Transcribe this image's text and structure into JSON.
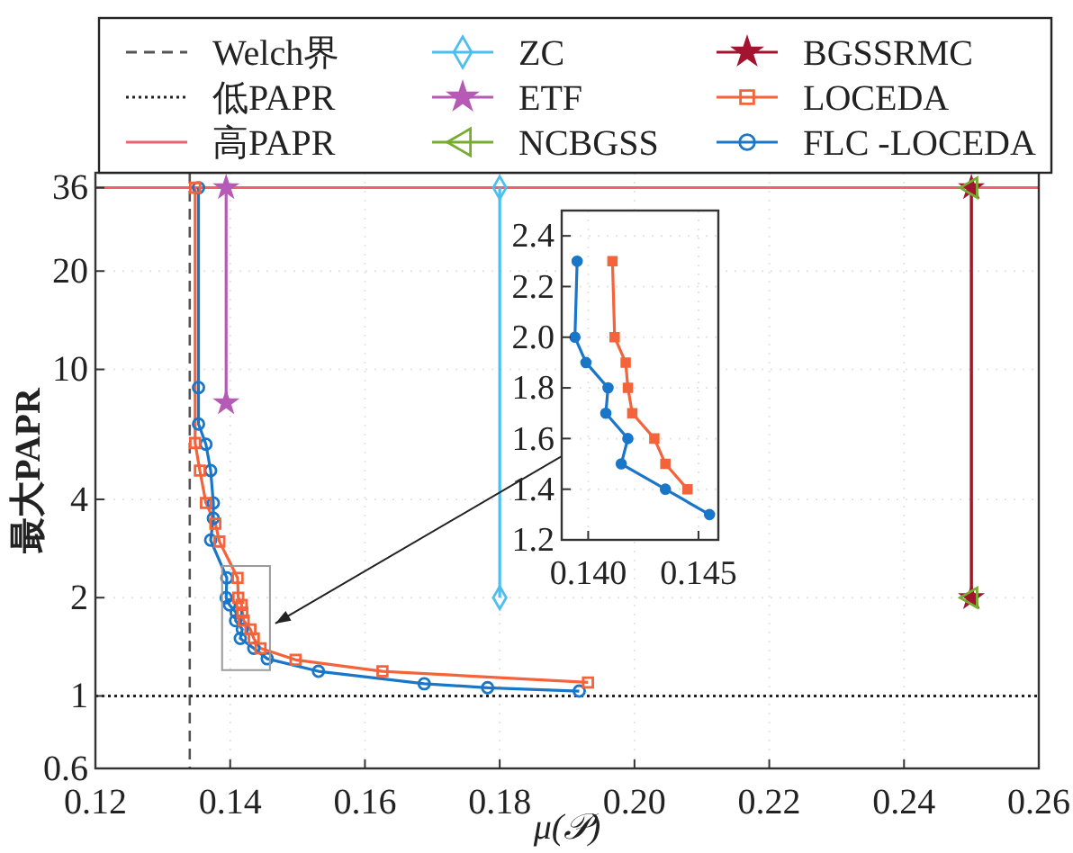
{
  "chart_data": [
    {
      "type": "line",
      "xlabel": "μ(𝒫)",
      "ylabel": "最大PAPR",
      "log": "y",
      "grid": true,
      "legend": "top",
      "xlim": [
        0.12,
        0.26
      ],
      "xticks": [
        0.12,
        0.14,
        0.16,
        0.18,
        {
          "value": 0.2,
          "label": "0.20"
        },
        0.22,
        0.24,
        0.26
      ],
      "ylim": [
        0.6,
        40
      ],
      "yticks": [
        0.6,
        1,
        2,
        4,
        10,
        20,
        36
      ],
      "ref_lines": [
        {
          "axis": "x",
          "value": 0.134,
          "label": "Welch界",
          "color": "#555555",
          "line_style": "dashed"
        },
        {
          "axis": "y",
          "value": 1,
          "label": "低PAPR",
          "color": "#222222",
          "line_style": "dotted"
        },
        {
          "axis": "y",
          "value": 36,
          "label": "高PAPR",
          "color": "#f06070",
          "line_style": "solid"
        }
      ],
      "series": [
        {
          "name": "ZC",
          "type": "line",
          "color": "#4dbeee",
          "marker": "diamond",
          "x": [
            0.18,
            0.18
          ],
          "values": [
            36,
            2
          ]
        },
        {
          "name": "ETF",
          "type": "line",
          "color": "#b55bb5",
          "marker": "star",
          "x": [
            0.1394,
            0.1394
          ],
          "values": [
            36,
            7.9
          ]
        },
        {
          "name": "NCBGSS",
          "type": "line",
          "color": "#77ac30",
          "marker": "triangle",
          "x": [
            0.25,
            0.25
          ],
          "values": [
            36,
            2
          ]
        },
        {
          "name": "BGSSRMC",
          "type": "line",
          "color": "#a2142f",
          "marker": "star",
          "x": [
            0.25,
            0.25
          ],
          "values": [
            36,
            2
          ]
        },
        {
          "name": "LOCEDA",
          "type": "line",
          "color": "#f4633a",
          "marker": "square",
          "x": [
            0.1348,
            0.1348,
            0.1355,
            0.1364,
            0.1378,
            0.1384,
            0.1411,
            0.1412,
            0.1417,
            0.1418,
            0.142,
            0.143,
            0.1435,
            0.1445,
            0.1497,
            0.1626,
            0.1931
          ],
          "values": [
            36,
            5.95,
            4.9,
            3.9,
            3.37,
            2.97,
            2.3,
            2.0,
            1.9,
            1.8,
            1.7,
            1.6,
            1.5,
            1.4,
            1.29,
            1.19,
            1.1
          ]
        },
        {
          "name": "FLC -LOCEDA",
          "type": "line",
          "color": "#1a76c8",
          "marker": "circle",
          "x": [
            0.1353,
            0.1353,
            0.1353,
            0.1364,
            0.1371,
            0.1375,
            0.1375,
            0.1371,
            0.1395,
            0.1394,
            0.1399,
            0.1409,
            0.1408,
            0.1418,
            0.1415,
            0.1435,
            0.1455,
            0.1531,
            0.1688,
            0.1782,
            0.1918
          ],
          "values": [
            36,
            8.8,
            6.8,
            5.9,
            4.9,
            3.9,
            3.5,
            3.0,
            2.3,
            2.0,
            1.9,
            1.8,
            1.7,
            1.6,
            1.5,
            1.4,
            1.3,
            1.19,
            1.09,
            1.06,
            1.035
          ]
        }
      ]
    },
    {
      "type": "line",
      "grid": true,
      "xlim": [
        0.1388,
        0.1459
      ],
      "xticks": [
        {
          "value": 0.14,
          "label": "0.140"
        },
        0.145
      ],
      "ylim": [
        1.2,
        2.5
      ],
      "yticks": [
        1.2,
        1.4,
        1.6,
        1.8,
        {
          "value": 2,
          "label": "2.0"
        },
        2.2,
        2.4
      ],
      "series": [
        {
          "type": "line",
          "color": "#f4633a",
          "marker": "square",
          "x": [
            0.1411,
            0.1412,
            0.1417,
            0.1418,
            0.142,
            0.143,
            0.1435,
            0.1445
          ],
          "values": [
            2.3,
            2.0,
            1.9,
            1.8,
            1.7,
            1.6,
            1.5,
            1.4
          ]
        },
        {
          "type": "line",
          "color": "#1a76c8",
          "marker": "circle",
          "x": [
            0.1395,
            0.1394,
            0.1399,
            0.1409,
            0.1408,
            0.1418,
            0.1415,
            0.1435,
            0.1455
          ],
          "values": [
            2.3,
            2.0,
            1.9,
            1.8,
            1.7,
            1.6,
            1.5,
            1.4,
            1.3
          ]
        }
      ]
    }
  ]
}
